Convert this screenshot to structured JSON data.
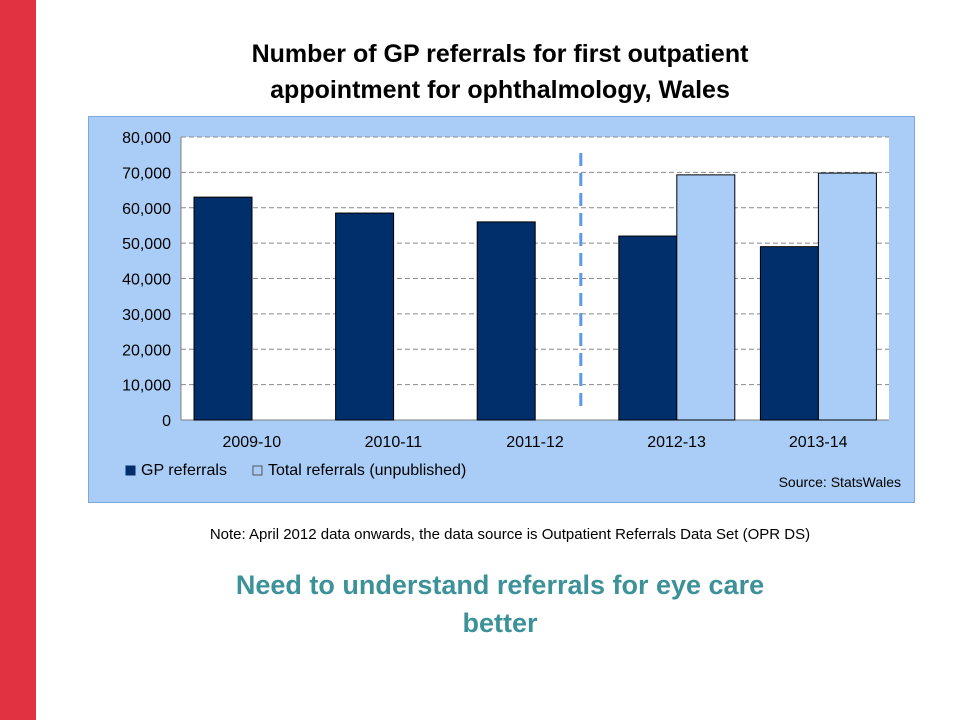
{
  "slide": {
    "note": "Note: April 2012 data onwards, the data source is Outpatient Referrals Data Set (OPR DS)",
    "message_line1": "Need to understand referrals for eye care",
    "message_line2": "better",
    "colors": {
      "accent_bar": "#e0323f",
      "message": "#3d9299"
    }
  },
  "chart_data": {
    "type": "bar",
    "title_line1": "Number of GP referrals for first outpatient",
    "title_line2": "appointment for ophthalmology, Wales",
    "categories": [
      "2009-10",
      "2010-11",
      "2011-12",
      "2012-13",
      "2013-14"
    ],
    "series": [
      {
        "name": "GP referrals",
        "color": "#002f6c",
        "values": [
          63000,
          58500,
          56000,
          52000,
          49000
        ]
      },
      {
        "name": "Total referrals (unpublished)",
        "color": "#a9cdf7",
        "values": [
          null,
          null,
          null,
          69300,
          69800
        ]
      }
    ],
    "ylim": [
      0,
      80000
    ],
    "y_ticks": [
      "0",
      "10,000",
      "20,000",
      "30,000",
      "40,000",
      "50,000",
      "60,000",
      "70,000",
      "80,000"
    ],
    "grid": true,
    "legend": "bottom-left",
    "source": "Source: StatsWales",
    "annotation": "dashed vertical divider between 2011-12 and 2012-13"
  }
}
